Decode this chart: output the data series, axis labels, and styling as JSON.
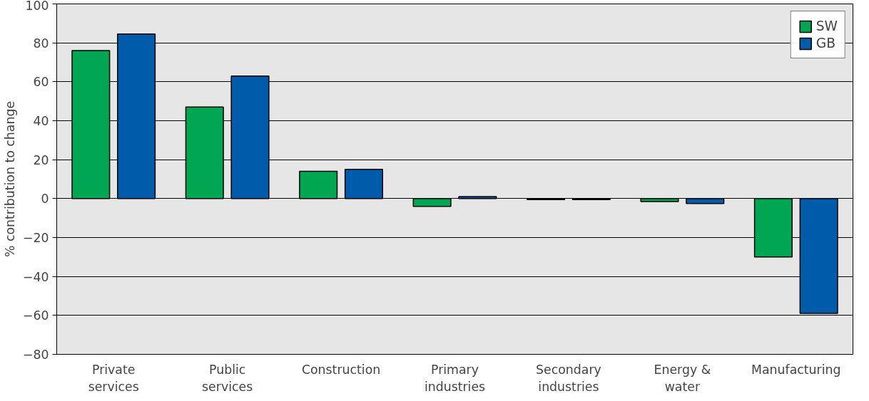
{
  "chart_data": {
    "type": "bar",
    "ylabel": "% contribution to change",
    "categories": [
      "Private\nservices",
      "Public\nservices",
      "Construction",
      "Primary\nindustries",
      "Secondary\nindustries",
      "Energy &\nwater",
      "Manufacturing"
    ],
    "series": [
      {
        "name": "SW",
        "color": "#00a651",
        "values": [
          76,
          47,
          14,
          -4,
          -0.5,
          -1.5,
          -30
        ]
      },
      {
        "name": "GB",
        "color": "#005bab",
        "values": [
          84.5,
          63,
          15,
          1,
          -0.5,
          -2.5,
          -59
        ]
      }
    ],
    "ylim": [
      -80,
      100
    ],
    "yticks": [
      -80,
      -60,
      -40,
      -20,
      0,
      20,
      40,
      60,
      80,
      100
    ],
    "grid": "y",
    "legend": "top right"
  }
}
